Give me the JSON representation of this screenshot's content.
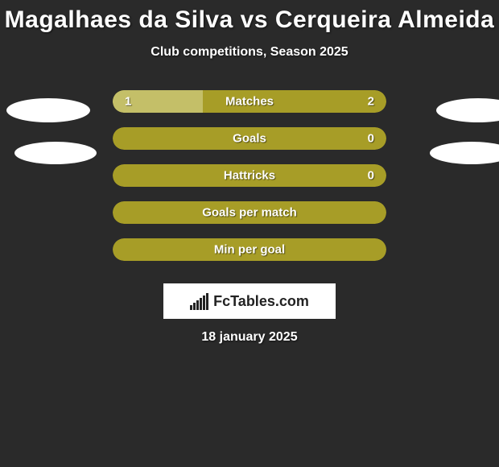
{
  "title": "Magalhaes da Silva vs Cerqueira Almeida",
  "subtitle": "Club competitions, Season 2025",
  "date": "18 january 2025",
  "logo_text": "FcTables.com",
  "colors": {
    "background": "#2a2a2a",
    "text": "#ffffff",
    "left_fill": "#c4bf68",
    "right_fill": "#a79d27",
    "neutral_fill": "#a79d27",
    "logo_bg": "#ffffff",
    "logo_fg": "#222222"
  },
  "layout": {
    "pill_width": 340,
    "pill_height": 28,
    "pill_radius": 14,
    "row_gap": 18,
    "title_fontsize": 30,
    "subtitle_fontsize": 16,
    "label_fontsize": 15
  },
  "stats": [
    {
      "label": "Matches",
      "left_value": "1",
      "right_value": "2",
      "left_pct": 33,
      "right_pct": 67,
      "show_values": true,
      "left_color": "#c4bf68",
      "right_color": "#a79d27"
    },
    {
      "label": "Goals",
      "left_value": "",
      "right_value": "0",
      "left_pct": 0,
      "right_pct": 100,
      "show_values": true,
      "left_color": "#c4bf68",
      "right_color": "#a79d27"
    },
    {
      "label": "Hattricks",
      "left_value": "",
      "right_value": "0",
      "left_pct": 0,
      "right_pct": 100,
      "show_values": true,
      "left_color": "#c4bf68",
      "right_color": "#a79d27"
    },
    {
      "label": "Goals per match",
      "left_value": "",
      "right_value": "",
      "left_pct": 0,
      "right_pct": 100,
      "show_values": false,
      "left_color": "#c4bf68",
      "right_color": "#a79d27"
    },
    {
      "label": "Min per goal",
      "left_value": "",
      "right_value": "",
      "left_pct": 0,
      "right_pct": 100,
      "show_values": false,
      "left_color": "#c4bf68",
      "right_color": "#a79d27"
    }
  ],
  "logo_bars": [
    6,
    9,
    12,
    15,
    18,
    21
  ]
}
